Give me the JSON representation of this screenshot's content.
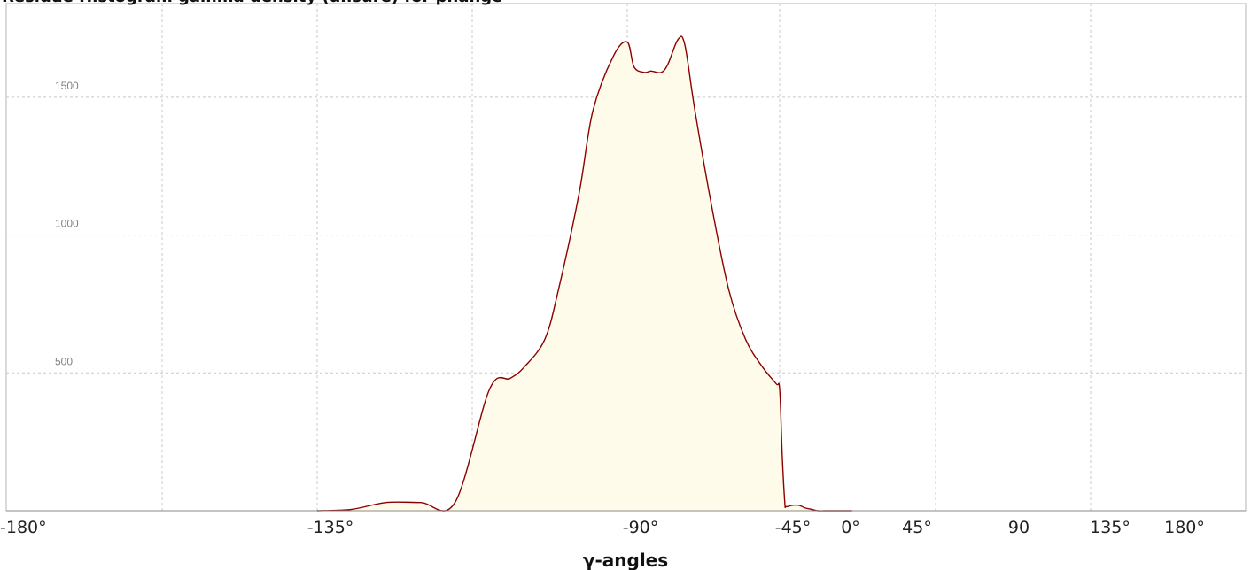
{
  "title": "Residue Histogram gamma density (unsure) for phange",
  "chart_data": {
    "type": "area",
    "title": "Residue Histogram gamma density (unsure) for phange",
    "xlabel": "γ-angles",
    "ylabel": "",
    "xlim": [
      -180,
      180
    ],
    "ylim": [
      0,
      1840
    ],
    "grid": true,
    "colors": {
      "line": "#8b0000",
      "fill": "#fffbea",
      "grid": "#c8c8c8"
    },
    "x_ticks": [
      {
        "value": -180,
        "label": "-180°"
      },
      {
        "value": -135,
        "label": "-135°"
      },
      {
        "value": -90,
        "label": "-90°"
      },
      {
        "value": -45,
        "label": "-45°"
      },
      {
        "value": 0,
        "label": "0°"
      },
      {
        "value": 45,
        "label": "45°"
      },
      {
        "value": 90,
        "label": "90"
      },
      {
        "value": 135,
        "label": "135°"
      },
      {
        "value": 180,
        "label": "180°"
      }
    ],
    "y_ticks": [
      {
        "value": 500,
        "label": "500"
      },
      {
        "value": 1000,
        "label": "1000"
      },
      {
        "value": 1500,
        "label": "1500"
      }
    ],
    "series": [
      {
        "x": [
          -135,
          -130,
          -125,
          -120,
          -115,
          -110,
          -107,
          -105,
          -102,
          -100,
          -97,
          -95,
          -92,
          -90,
          -88,
          -85,
          -83,
          -80,
          -78,
          -75,
          -73,
          -70,
          -65,
          -60,
          -55,
          -50,
          -46,
          -45,
          -43,
          -41,
          -40,
          -35,
          -30,
          -25,
          -20,
          -15,
          -10,
          -5,
          0,
          5,
          10
        ],
        "values": [
          0,
          5,
          30,
          30,
          30,
          440,
          480,
          520,
          620,
          800,
          1150,
          1450,
          1650,
          1700,
          1610,
          1590,
          1595,
          1590,
          1620,
          1710,
          1690,
          1450,
          1100,
          800,
          620,
          520,
          460,
          440,
          200,
          30,
          15,
          20,
          20,
          10,
          5,
          0,
          0,
          0,
          0,
          0,
          0
        ]
      }
    ]
  }
}
